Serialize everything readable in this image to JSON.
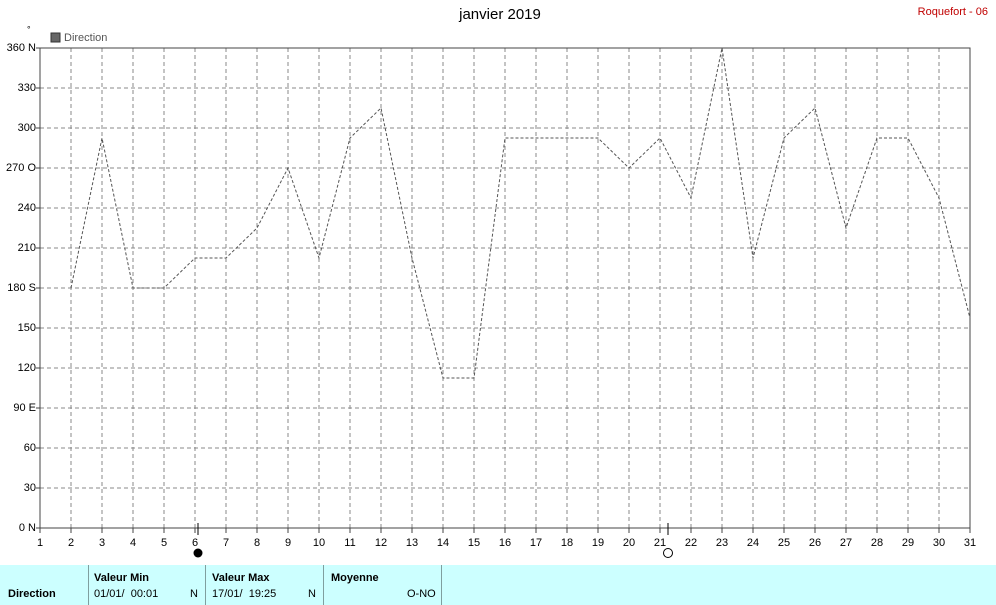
{
  "chart_data": {
    "type": "line",
    "title": "janvier 2019",
    "station": "Roquefort - 06",
    "y_unit": "°",
    "x": [
      1,
      2,
      3,
      4,
      5,
      6,
      7,
      8,
      9,
      10,
      11,
      12,
      13,
      14,
      15,
      16,
      17,
      18,
      19,
      20,
      21,
      22,
      23,
      24,
      25,
      26,
      27,
      28,
      29,
      30,
      31
    ],
    "xlim": [
      1,
      31
    ],
    "xticks": [
      1,
      2,
      3,
      4,
      5,
      6,
      7,
      8,
      9,
      10,
      11,
      12,
      13,
      14,
      15,
      16,
      17,
      18,
      19,
      20,
      21,
      22,
      23,
      24,
      25,
      26,
      27,
      28,
      29,
      30,
      31
    ],
    "ylim": [
      0,
      360
    ],
    "yticks": [
      {
        "value": 0,
        "label": "0  N"
      },
      30,
      60,
      {
        "value": 90,
        "label": "90  E"
      },
      120,
      150,
      {
        "value": 180,
        "label": "180 S"
      },
      210,
      240,
      {
        "value": 270,
        "label": "270 O"
      },
      300,
      330,
      {
        "value": 360,
        "label": "360 N"
      }
    ],
    "grid": true,
    "legend": "top-left",
    "series": [
      {
        "name": "Direction",
        "color": "#555555",
        "values": [
          null,
          180,
          292.5,
          180,
          180,
          202.5,
          202.5,
          225,
          270,
          202.5,
          292.5,
          315,
          202.5,
          112.5,
          112.5,
          292.5,
          292.5,
          292.5,
          292.5,
          270,
          292.5,
          247.5,
          360,
          202.5,
          292.5,
          315,
          225,
          292.5,
          292.5,
          247.5,
          157.5
        ]
      }
    ]
  },
  "summary": {
    "row_label": "Direction",
    "min": {
      "header": "Valeur Min",
      "date": "01/01/  00:01",
      "dir": "N"
    },
    "max": {
      "header": "Valeur Max",
      "date": "17/01/  19:25",
      "dir": "N"
    },
    "mean": {
      "header": "Moyenne",
      "value": "O-NO"
    }
  }
}
